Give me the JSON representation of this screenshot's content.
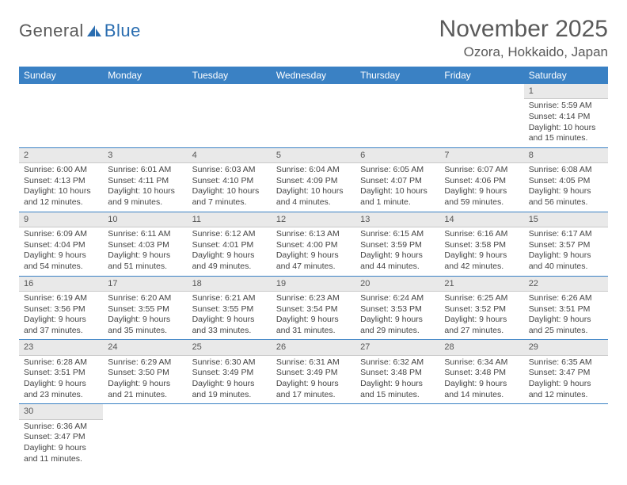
{
  "brand": {
    "part1": "General",
    "part2": "Blue"
  },
  "title": "November 2025",
  "location": "Ozora, Hokkaido, Japan",
  "colors": {
    "header_bg": "#3a81c4",
    "header_text": "#ffffff",
    "daynum_bg": "#e9e9e9",
    "row_divider": "#3a81c4",
    "text": "#444444",
    "title_text": "#5a5a5a"
  },
  "weekdays": [
    "Sunday",
    "Monday",
    "Tuesday",
    "Wednesday",
    "Thursday",
    "Friday",
    "Saturday"
  ],
  "weeks": [
    [
      null,
      null,
      null,
      null,
      null,
      null,
      {
        "n": "1",
        "sr": "5:59 AM",
        "ss": "4:14 PM",
        "dl": "10 hours and 15 minutes."
      }
    ],
    [
      {
        "n": "2",
        "sr": "6:00 AM",
        "ss": "4:13 PM",
        "dl": "10 hours and 12 minutes."
      },
      {
        "n": "3",
        "sr": "6:01 AM",
        "ss": "4:11 PM",
        "dl": "10 hours and 9 minutes."
      },
      {
        "n": "4",
        "sr": "6:03 AM",
        "ss": "4:10 PM",
        "dl": "10 hours and 7 minutes."
      },
      {
        "n": "5",
        "sr": "6:04 AM",
        "ss": "4:09 PM",
        "dl": "10 hours and 4 minutes."
      },
      {
        "n": "6",
        "sr": "6:05 AM",
        "ss": "4:07 PM",
        "dl": "10 hours and 1 minute."
      },
      {
        "n": "7",
        "sr": "6:07 AM",
        "ss": "4:06 PM",
        "dl": "9 hours and 59 minutes."
      },
      {
        "n": "8",
        "sr": "6:08 AM",
        "ss": "4:05 PM",
        "dl": "9 hours and 56 minutes."
      }
    ],
    [
      {
        "n": "9",
        "sr": "6:09 AM",
        "ss": "4:04 PM",
        "dl": "9 hours and 54 minutes."
      },
      {
        "n": "10",
        "sr": "6:11 AM",
        "ss": "4:03 PM",
        "dl": "9 hours and 51 minutes."
      },
      {
        "n": "11",
        "sr": "6:12 AM",
        "ss": "4:01 PM",
        "dl": "9 hours and 49 minutes."
      },
      {
        "n": "12",
        "sr": "6:13 AM",
        "ss": "4:00 PM",
        "dl": "9 hours and 47 minutes."
      },
      {
        "n": "13",
        "sr": "6:15 AM",
        "ss": "3:59 PM",
        "dl": "9 hours and 44 minutes."
      },
      {
        "n": "14",
        "sr": "6:16 AM",
        "ss": "3:58 PM",
        "dl": "9 hours and 42 minutes."
      },
      {
        "n": "15",
        "sr": "6:17 AM",
        "ss": "3:57 PM",
        "dl": "9 hours and 40 minutes."
      }
    ],
    [
      {
        "n": "16",
        "sr": "6:19 AM",
        "ss": "3:56 PM",
        "dl": "9 hours and 37 minutes."
      },
      {
        "n": "17",
        "sr": "6:20 AM",
        "ss": "3:55 PM",
        "dl": "9 hours and 35 minutes."
      },
      {
        "n": "18",
        "sr": "6:21 AM",
        "ss": "3:55 PM",
        "dl": "9 hours and 33 minutes."
      },
      {
        "n": "19",
        "sr": "6:23 AM",
        "ss": "3:54 PM",
        "dl": "9 hours and 31 minutes."
      },
      {
        "n": "20",
        "sr": "6:24 AM",
        "ss": "3:53 PM",
        "dl": "9 hours and 29 minutes."
      },
      {
        "n": "21",
        "sr": "6:25 AM",
        "ss": "3:52 PM",
        "dl": "9 hours and 27 minutes."
      },
      {
        "n": "22",
        "sr": "6:26 AM",
        "ss": "3:51 PM",
        "dl": "9 hours and 25 minutes."
      }
    ],
    [
      {
        "n": "23",
        "sr": "6:28 AM",
        "ss": "3:51 PM",
        "dl": "9 hours and 23 minutes."
      },
      {
        "n": "24",
        "sr": "6:29 AM",
        "ss": "3:50 PM",
        "dl": "9 hours and 21 minutes."
      },
      {
        "n": "25",
        "sr": "6:30 AM",
        "ss": "3:49 PM",
        "dl": "9 hours and 19 minutes."
      },
      {
        "n": "26",
        "sr": "6:31 AM",
        "ss": "3:49 PM",
        "dl": "9 hours and 17 minutes."
      },
      {
        "n": "27",
        "sr": "6:32 AM",
        "ss": "3:48 PM",
        "dl": "9 hours and 15 minutes."
      },
      {
        "n": "28",
        "sr": "6:34 AM",
        "ss": "3:48 PM",
        "dl": "9 hours and 14 minutes."
      },
      {
        "n": "29",
        "sr": "6:35 AM",
        "ss": "3:47 PM",
        "dl": "9 hours and 12 minutes."
      }
    ],
    [
      {
        "n": "30",
        "sr": "6:36 AM",
        "ss": "3:47 PM",
        "dl": "9 hours and 11 minutes."
      },
      null,
      null,
      null,
      null,
      null,
      null
    ]
  ],
  "labels": {
    "sunrise": "Sunrise: ",
    "sunset": "Sunset: ",
    "daylight": "Daylight: "
  }
}
